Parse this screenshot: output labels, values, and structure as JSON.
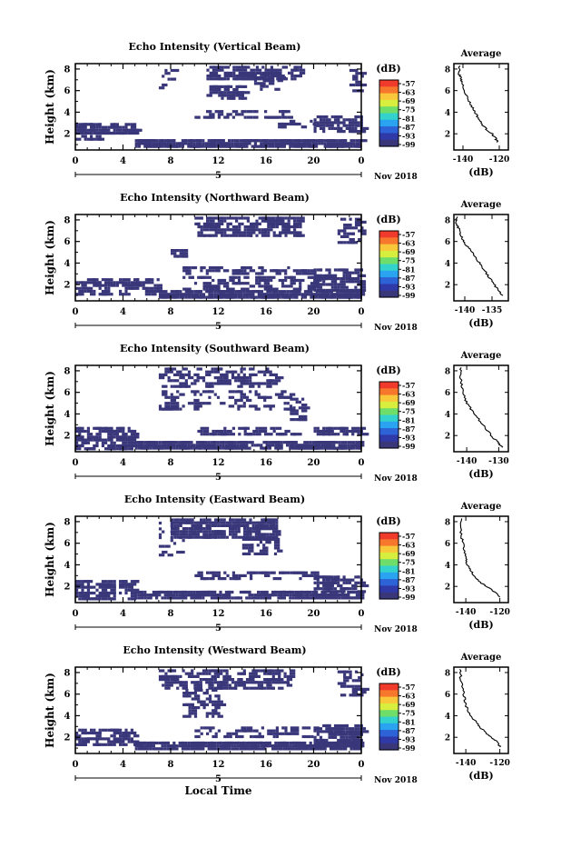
{
  "figure": {
    "xlabel": "Local Time",
    "units_label": "(dB)",
    "avg_title": "Average",
    "avg_xlabel": "(dB)",
    "date_label": "Nov 2018",
    "day_label": "5",
    "colorbar_ticks": [
      "-57",
      "-63",
      "-69",
      "-75",
      "-81",
      "-87",
      "-93",
      "-99"
    ],
    "colorbar_colors": [
      "#f03b2c",
      "#f7772d",
      "#f9c83a",
      "#d8ee3e",
      "#6fdd6a",
      "#33d2cc",
      "#2aa4f0",
      "#2d63d6",
      "#2f3aa8",
      "#39377a"
    ],
    "echo_color": "#39377a"
  },
  "panels": [
    {
      "id": "vertical",
      "title": "Echo Intensity (Vertical Beam)"
    },
    {
      "id": "northward",
      "title": "Echo Intensity (Northward Beam)"
    },
    {
      "id": "southward",
      "title": "Echo Intensity (Southward Beam)"
    },
    {
      "id": "eastward",
      "title": "Echo Intensity (Eastward Beam)"
    },
    {
      "id": "westward",
      "title": "Echo Intensity (Westward Beam)"
    }
  ],
  "chart_data": [
    {
      "type": "heatmap",
      "title": "Echo Intensity (Vertical Beam)",
      "ylabel": "Height (km)",
      "xlabel": "",
      "x_ticks": [
        "0",
        "4",
        "8",
        "12",
        "16",
        "20",
        "0"
      ],
      "y_ticks": [
        "2",
        "4",
        "6",
        "8"
      ],
      "xlim": [
        0,
        24
      ],
      "ylim": [
        0.5,
        8.5
      ],
      "colorbar_label": "(dB)",
      "colorbar_ticks": [
        -57,
        -63,
        -69,
        -75,
        -81,
        -87,
        -93,
        -99
      ],
      "blobs": [
        {
          "x": [
            0,
            5
          ],
          "y": [
            2.0,
            3.0
          ],
          "d": 0.75
        },
        {
          "x": [
            0,
            2
          ],
          "y": [
            1.4,
            1.9
          ],
          "d": 0.6
        },
        {
          "x": [
            5,
            24
          ],
          "y": [
            0.9,
            1.5
          ],
          "d": 0.9
        },
        {
          "x": [
            10,
            18
          ],
          "y": [
            3.4,
            4.2
          ],
          "d": 0.35
        },
        {
          "x": [
            20,
            24
          ],
          "y": [
            2.3,
            3.7
          ],
          "d": 0.65
        },
        {
          "x": [
            17,
            20
          ],
          "y": [
            2.5,
            3.3
          ],
          "d": 0.35
        },
        {
          "x": [
            11,
            19
          ],
          "y": [
            7.0,
            8.3
          ],
          "d": 0.55
        },
        {
          "x": [
            11,
            14
          ],
          "y": [
            5.3,
            6.5
          ],
          "d": 0.6
        },
        {
          "x": [
            15,
            17
          ],
          "y": [
            6.2,
            7.6
          ],
          "d": 0.5
        },
        {
          "x": [
            7,
            8
          ],
          "y": [
            5.5,
            8.0
          ],
          "d": 0.25
        },
        {
          "x": [
            23,
            24
          ],
          "y": [
            6.0,
            8.0
          ],
          "d": 0.3
        }
      ],
      "avg": {
        "title": "Average",
        "xlabel": "(dB)",
        "x_ticks": [
          "-140",
          "-120"
        ],
        "xlim": [
          -145,
          -115
        ],
        "ylim": [
          0.5,
          8.5
        ],
        "y_ticks": [
          "2",
          "4",
          "6",
          "8"
        ],
        "x": [
          -142,
          -142,
          -141,
          -140,
          -138,
          -136,
          -134,
          -132,
          -130,
          -127,
          -124,
          -122,
          -121
        ],
        "y": [
          8.3,
          7.5,
          7.0,
          6.5,
          5.5,
          4.8,
          4.2,
          3.6,
          3.0,
          2.4,
          2.0,
          1.6,
          1.2
        ]
      }
    },
    {
      "type": "heatmap",
      "title": "Echo Intensity (Northward Beam)",
      "ylabel": "Height (km)",
      "xlabel": "",
      "x_ticks": [
        "0",
        "4",
        "8",
        "12",
        "16",
        "20",
        "0"
      ],
      "y_ticks": [
        "2",
        "4",
        "6",
        "8"
      ],
      "xlim": [
        0,
        24
      ],
      "ylim": [
        0.5,
        8.5
      ],
      "colorbar_label": "(dB)",
      "colorbar_ticks": [
        -57,
        -63,
        -69,
        -75,
        -81,
        -87,
        -93,
        -99
      ],
      "blobs": [
        {
          "x": [
            0,
            7
          ],
          "y": [
            1.0,
            2.6
          ],
          "d": 0.55
        },
        {
          "x": [
            7,
            24
          ],
          "y": [
            0.9,
            1.5
          ],
          "d": 0.85
        },
        {
          "x": [
            9,
            20
          ],
          "y": [
            1.6,
            2.8
          ],
          "d": 0.35
        },
        {
          "x": [
            20,
            24
          ],
          "y": [
            1.5,
            3.5
          ],
          "d": 0.7
        },
        {
          "x": [
            9,
            20
          ],
          "y": [
            3.0,
            3.7
          ],
          "d": 0.3
        },
        {
          "x": [
            10,
            19
          ],
          "y": [
            6.5,
            8.3
          ],
          "d": 0.55
        },
        {
          "x": [
            8,
            9
          ],
          "y": [
            4.6,
            5.3
          ],
          "d": 0.6
        },
        {
          "x": [
            22,
            24
          ],
          "y": [
            6.0,
            8.2
          ],
          "d": 0.4
        }
      ],
      "avg": {
        "title": "Average",
        "xlabel": "(dB)",
        "x_ticks": [
          "-140",
          "-135"
        ],
        "xlim": [
          -142,
          -132
        ],
        "ylim": [
          0.5,
          8.5
        ],
        "y_ticks": [
          "2",
          "4",
          "6",
          "8"
        ],
        "x": [
          -141.5,
          -141.5,
          -141,
          -140.5,
          -140,
          -139,
          -138,
          -137,
          -136,
          -135,
          -134,
          -133
        ],
        "y": [
          8.3,
          7.6,
          7.0,
          6.4,
          5.8,
          5.2,
          4.5,
          3.8,
          3.0,
          2.3,
          1.6,
          1.0
        ]
      }
    },
    {
      "type": "heatmap",
      "title": "Echo Intensity (Southward Beam)",
      "ylabel": "Height (km)",
      "xlabel": "",
      "x_ticks": [
        "0",
        "4",
        "8",
        "12",
        "16",
        "20",
        "0"
      ],
      "y_ticks": [
        "2",
        "4",
        "6",
        "8"
      ],
      "xlim": [
        0,
        24
      ],
      "ylim": [
        0.5,
        8.5
      ],
      "colorbar_label": "(dB)",
      "colorbar_ticks": [
        -57,
        -63,
        -69,
        -75,
        -81,
        -87,
        -93,
        -99
      ],
      "blobs": [
        {
          "x": [
            0,
            5
          ],
          "y": [
            0.9,
            2.8
          ],
          "d": 0.6
        },
        {
          "x": [
            5,
            24
          ],
          "y": [
            0.9,
            1.5
          ],
          "d": 0.8
        },
        {
          "x": [
            10,
            19
          ],
          "y": [
            2.0,
            2.8
          ],
          "d": 0.3
        },
        {
          "x": [
            20,
            24
          ],
          "y": [
            2.0,
            2.8
          ],
          "d": 0.6
        },
        {
          "x": [
            7,
            17
          ],
          "y": [
            6.5,
            8.3
          ],
          "d": 0.4
        },
        {
          "x": [
            7,
            18
          ],
          "y": [
            4.5,
            6.2
          ],
          "d": 0.25
        },
        {
          "x": [
            18,
            19
          ],
          "y": [
            3.5,
            5.5
          ],
          "d": 0.3
        }
      ],
      "avg": {
        "title": "Average",
        "xlabel": "(dB)",
        "x_ticks": [
          "-140",
          "-130"
        ],
        "xlim": [
          -144,
          -127
        ],
        "ylim": [
          0.5,
          8.5
        ],
        "y_ticks": [
          "2",
          "4",
          "6",
          "8"
        ],
        "x": [
          -142,
          -142,
          -141.5,
          -141,
          -140,
          -138,
          -136,
          -134,
          -132,
          -130,
          -129
        ],
        "y": [
          8.3,
          7.4,
          6.6,
          5.8,
          5.0,
          4.2,
          3.4,
          2.6,
          1.9,
          1.3,
          0.9
        ]
      }
    },
    {
      "type": "heatmap",
      "title": "Echo Intensity (Eastward Beam)",
      "ylabel": "Height (km)",
      "xlabel": "",
      "x_ticks": [
        "0",
        "4",
        "8",
        "12",
        "16",
        "20",
        "0"
      ],
      "y_ticks": [
        "2",
        "4",
        "6",
        "8"
      ],
      "xlim": [
        0,
        24
      ],
      "ylim": [
        0.5,
        8.5
      ],
      "colorbar_label": "(dB)",
      "colorbar_ticks": [
        -57,
        -63,
        -69,
        -75,
        -81,
        -87,
        -93,
        -99
      ],
      "blobs": [
        {
          "x": [
            0,
            5
          ],
          "y": [
            0.9,
            2.6
          ],
          "d": 0.5
        },
        {
          "x": [
            5,
            24
          ],
          "y": [
            0.9,
            1.6
          ],
          "d": 0.8
        },
        {
          "x": [
            10,
            20
          ],
          "y": [
            2.6,
            3.4
          ],
          "d": 0.35
        },
        {
          "x": [
            20,
            24
          ],
          "y": [
            1.5,
            3.0
          ],
          "d": 0.6
        },
        {
          "x": [
            8,
            17
          ],
          "y": [
            6.5,
            8.3
          ],
          "d": 0.65
        },
        {
          "x": [
            7,
            9
          ],
          "y": [
            5.0,
            8.0
          ],
          "d": 0.25
        },
        {
          "x": [
            14,
            17
          ],
          "y": [
            5.0,
            6.5
          ],
          "d": 0.35
        }
      ],
      "avg": {
        "title": "Average",
        "xlabel": "(dB)",
        "x_ticks": [
          "-140",
          "-120"
        ],
        "xlim": [
          -147,
          -115
        ],
        "ylim": [
          0.5,
          8.5
        ],
        "y_ticks": [
          "2",
          "4",
          "6",
          "8"
        ],
        "x": [
          -143,
          -143,
          -142,
          -141,
          -140,
          -139,
          -137,
          -134,
          -130,
          -126,
          -122,
          -120
        ],
        "y": [
          8.3,
          7.0,
          6.2,
          5.4,
          4.6,
          4.0,
          3.4,
          2.8,
          2.2,
          1.8,
          1.4,
          1.0
        ]
      }
    },
    {
      "type": "heatmap",
      "title": "Echo Intensity (Westward Beam)",
      "ylabel": "Height (km)",
      "xlabel": "Local Time",
      "x_ticks": [
        "0",
        "4",
        "8",
        "12",
        "16",
        "20",
        "0"
      ],
      "y_ticks": [
        "2",
        "4",
        "6",
        "8"
      ],
      "xlim": [
        0,
        24
      ],
      "ylim": [
        0.5,
        8.5
      ],
      "colorbar_label": "(dB)",
      "colorbar_ticks": [
        -57,
        -63,
        -69,
        -75,
        -81,
        -87,
        -93,
        -99
      ],
      "blobs": [
        {
          "x": [
            0,
            5
          ],
          "y": [
            1.4,
            2.8
          ],
          "d": 0.55
        },
        {
          "x": [
            5,
            24
          ],
          "y": [
            0.9,
            1.6
          ],
          "d": 0.85
        },
        {
          "x": [
            10,
            20
          ],
          "y": [
            2.0,
            3.0
          ],
          "d": 0.3
        },
        {
          "x": [
            20,
            24
          ],
          "y": [
            1.2,
            3.2
          ],
          "d": 0.6
        },
        {
          "x": [
            7,
            18
          ],
          "y": [
            6.5,
            8.3
          ],
          "d": 0.45
        },
        {
          "x": [
            9,
            12
          ],
          "y": [
            4.0,
            6.5
          ],
          "d": 0.35
        },
        {
          "x": [
            22,
            24
          ],
          "y": [
            6.0,
            8.2
          ],
          "d": 0.3
        }
      ],
      "avg": {
        "title": "Average",
        "xlabel": "(dB)",
        "x_ticks": [
          "-140",
          "-120"
        ],
        "xlim": [
          -147,
          -115
        ],
        "ylim": [
          0.5,
          8.5
        ],
        "y_ticks": [
          "2",
          "4",
          "6",
          "8"
        ],
        "x": [
          -143,
          -143,
          -142,
          -141,
          -140,
          -138,
          -135,
          -132,
          -128,
          -124,
          -121,
          -120
        ],
        "y": [
          8.3,
          7.4,
          6.6,
          5.8,
          5.0,
          4.2,
          3.6,
          3.0,
          2.4,
          1.9,
          1.5,
          1.1
        ]
      }
    }
  ]
}
